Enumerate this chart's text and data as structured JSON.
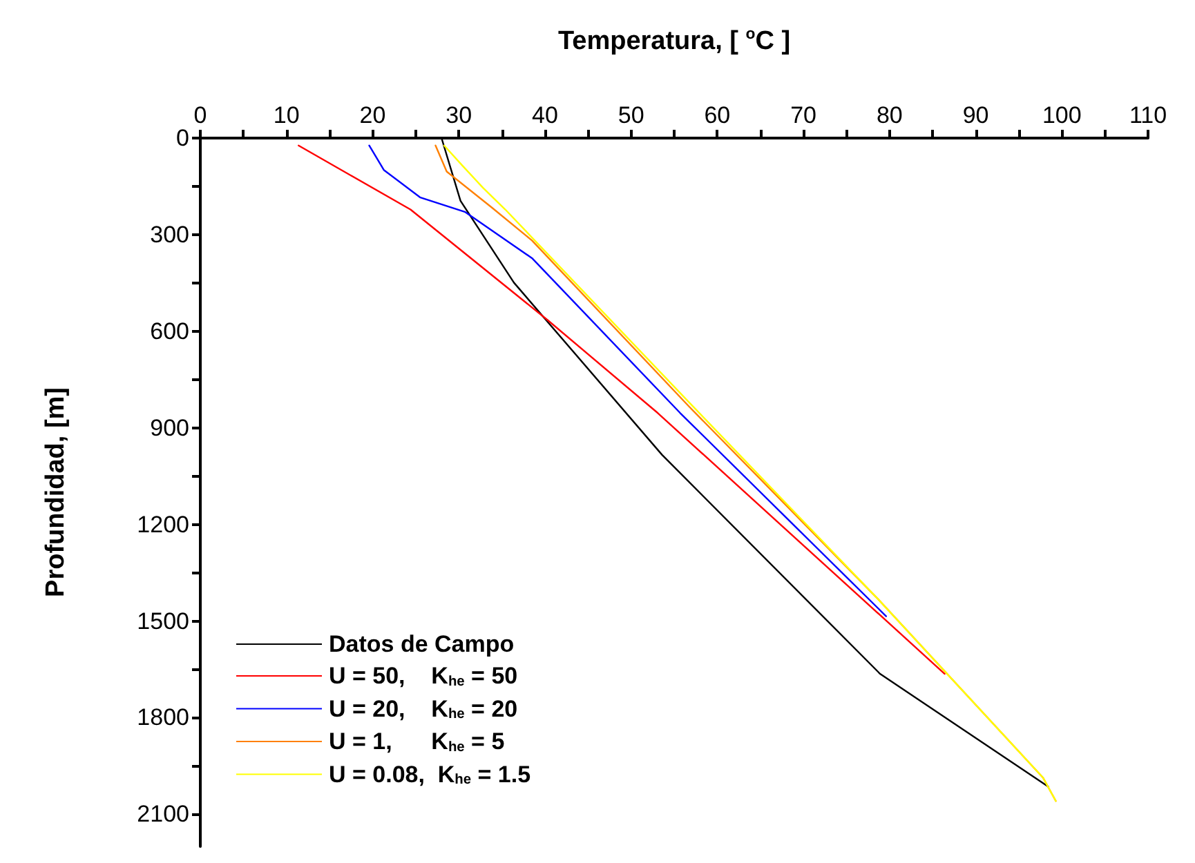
{
  "chart_data": {
    "type": "line",
    "xlabel": "Temperatura, [ $^{o}$C ]",
    "ylabel": "Profundidad, [m]",
    "xlim": [
      0,
      110
    ],
    "xticks": [
      0,
      {
        "value": 5,
        "label": null
      },
      10,
      {
        "value": 15,
        "label": null
      },
      20,
      {
        "value": 25,
        "label": null
      },
      30,
      {
        "value": 35,
        "label": null
      },
      40,
      {
        "value": 45,
        "label": null
      },
      50,
      {
        "value": 55,
        "label": null
      },
      60,
      {
        "value": 65,
        "label": null
      },
      70,
      {
        "value": 75,
        "label": null
      },
      80,
      {
        "value": 85,
        "label": null
      },
      90,
      {
        "value": 95,
        "label": null
      },
      100,
      {
        "value": 105,
        "label": null
      },
      110
    ],
    "ylim": [
      2200,
      0
    ],
    "yticks": [
      0,
      {
        "value": 150,
        "label": null
      },
      300,
      {
        "value": 450,
        "label": null
      },
      600,
      {
        "value": 750,
        "label": null
      },
      900,
      {
        "value": 1050,
        "label": null
      },
      1200,
      {
        "value": 1350,
        "label": null
      },
      1500,
      {
        "value": 1650,
        "label": null
      },
      1800,
      {
        "value": 1950,
        "label": null
      },
      2100
    ],
    "grid": false,
    "legend": "bottom left",
    "marker": "none",
    "line_style": "solid",
    "series": [
      {
        "name": "Datos de Campo",
        "color": "#000000",
        "x": [
          28,
          30.2,
          36.4,
          53.6,
          78.9,
          98.4
        ],
        "values": [
          0,
          195,
          449,
          984,
          1664,
          2014
        ]
      },
      {
        "name": "U = 50,    K$_{he}$ = 50",
        "color": "#ff0000",
        "x": [
          11.4,
          24.4,
          40.3,
          53.1,
          86.4
        ],
        "values": [
          23,
          222,
          565,
          854,
          1664
        ]
      },
      {
        "name": "U = 20,    K$_{he}$ = 20",
        "color": "#0000ff",
        "x": [
          19.6,
          21.3,
          25.5,
          30.7,
          38.5,
          55.7,
          79.6
        ],
        "values": [
          23,
          99,
          184,
          229,
          373,
          854,
          1485
        ]
      },
      {
        "name": "U = 1,      K$_{he}$ = 5",
        "color": "#ff8000",
        "x": [
          27.3,
          28.6,
          33.8,
          38.5,
          56.7,
          78.6,
          97.8,
          99.3
        ],
        "values": [
          23,
          104,
          215,
          318,
          833,
          1430,
          1986,
          2059
        ]
      },
      {
        "name": "U = 0.08,  K$_{he}$ = 1.5",
        "color": "#ffff00",
        "x": [
          28.3,
          30.4,
          32.8,
          35.4,
          56.7,
          78.6,
          97.8,
          99.3
        ],
        "values": [
          23,
          85,
          154,
          222,
          820,
          1430,
          1986,
          2059
        ]
      }
    ]
  }
}
